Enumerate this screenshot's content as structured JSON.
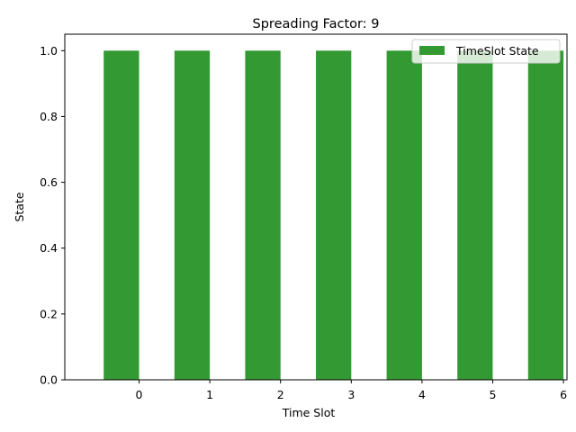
{
  "chart_data": {
    "type": "bar",
    "title": "Spreading Factor: 9",
    "xlabel": "Time Slot",
    "ylabel": "State",
    "x": [
      -0.25,
      0.75,
      1.75,
      2.75,
      3.75,
      4.75,
      5.75
    ],
    "series": [
      {
        "name": "TimeSlot State",
        "values": [
          1,
          1,
          1,
          1,
          1,
          1,
          1
        ],
        "color": "#339933"
      }
    ],
    "bar_width_data": 0.5,
    "xlim": [
      -1.05,
      6.05
    ],
    "ylim": [
      0,
      1.05
    ],
    "xticks": [
      0,
      1,
      2,
      3,
      4,
      5,
      6
    ],
    "yticks": [
      0.0,
      0.2,
      0.4,
      0.6,
      0.8,
      1.0
    ],
    "ytick_labels": [
      "0.0",
      "0.2",
      "0.4",
      "0.6",
      "0.8",
      "1.0"
    ],
    "legend_position": "top-right",
    "grid": false
  }
}
